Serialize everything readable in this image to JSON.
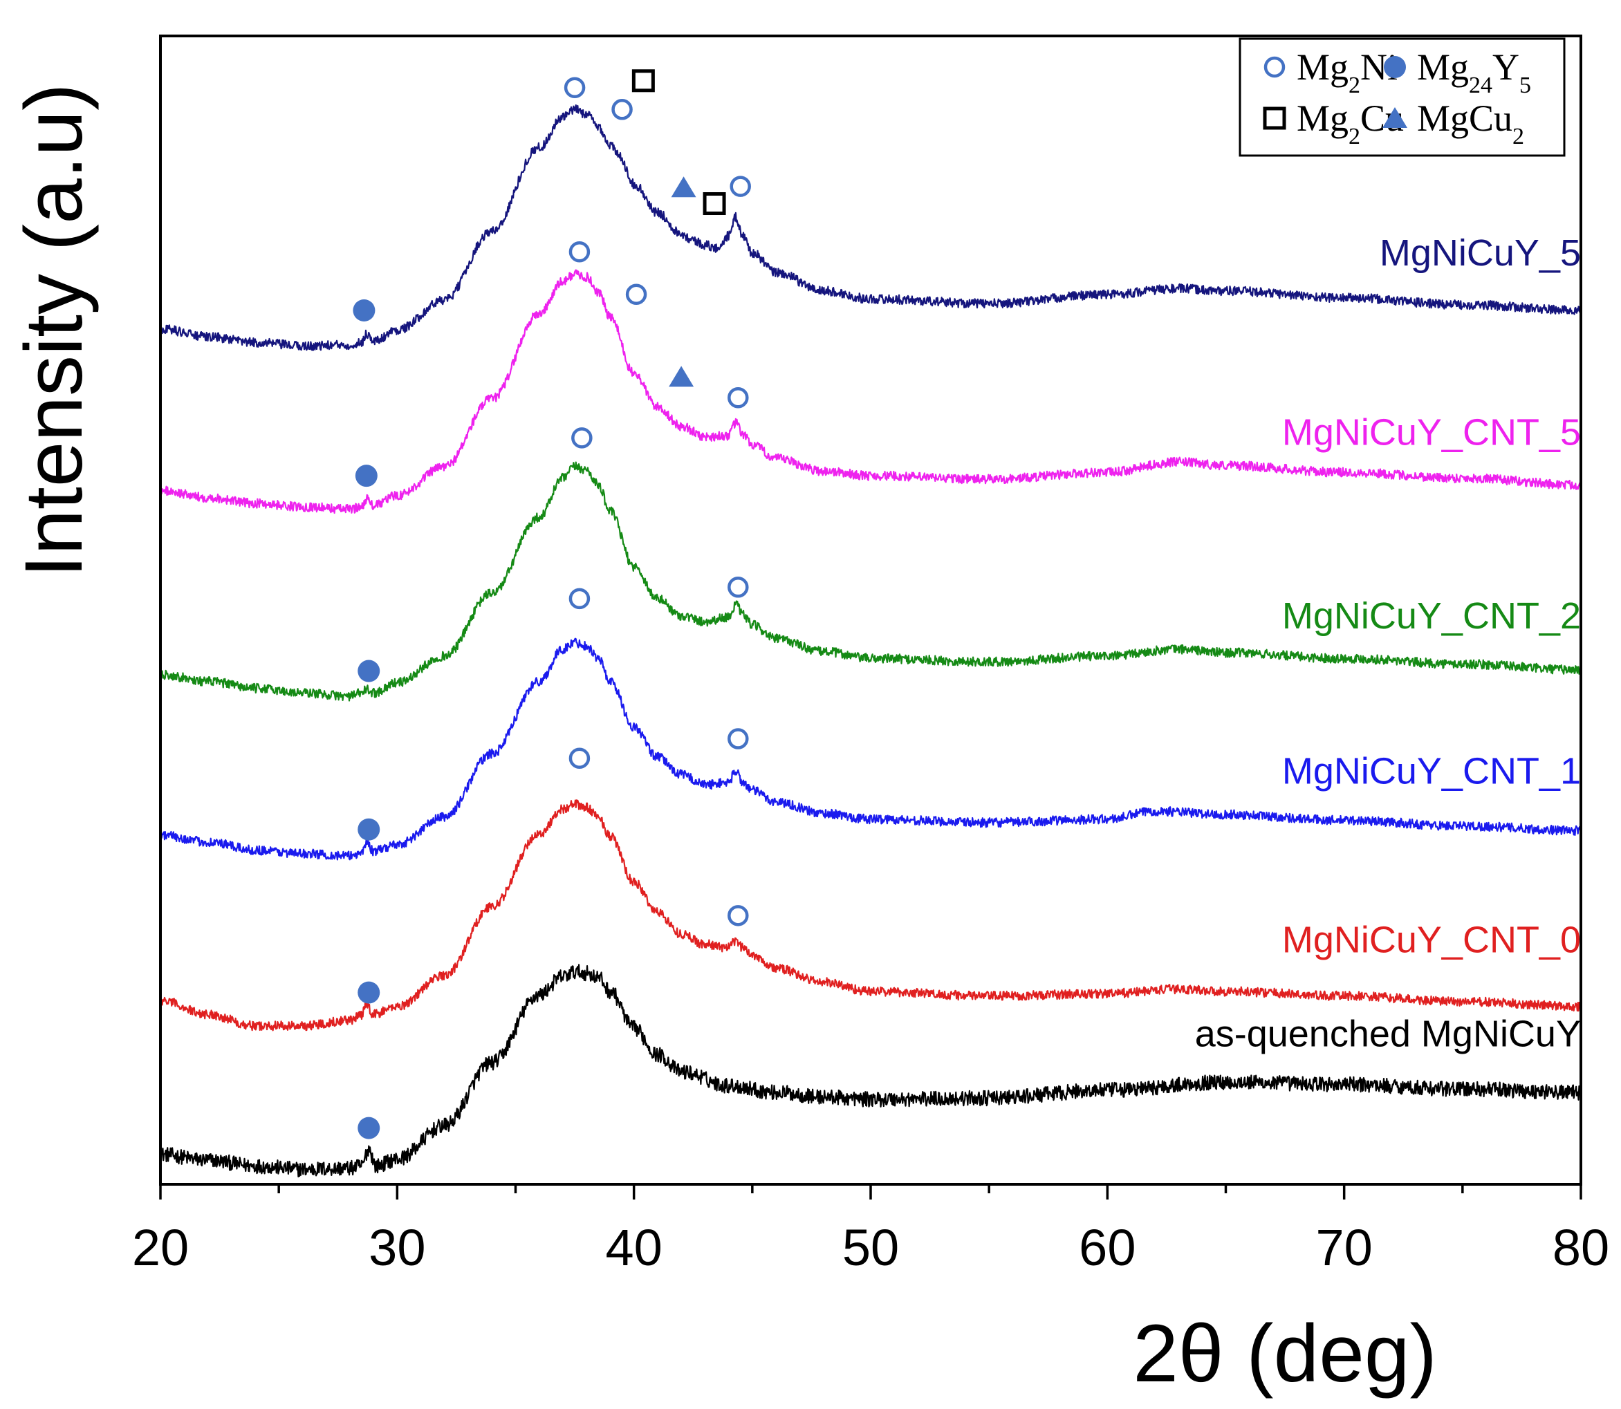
{
  "chart_data": {
    "type": "line",
    "title": "",
    "xlabel": "2θ (deg)",
    "ylabel": "Intensity (a.u)",
    "xlim": [
      20,
      80
    ],
    "ylim": [
      0,
      1000
    ],
    "x_ticks": [
      20,
      30,
      40,
      50,
      60,
      70,
      80
    ],
    "x_tick_labels": [
      "20",
      "30",
      "40",
      "50",
      "60",
      "70",
      "80"
    ],
    "grid": false,
    "legend": {
      "position": "top-right",
      "entries": [
        {
          "marker": "open-circle",
          "name": "Mg",
          "sub": "2",
          "rest": "Ni",
          "sub2": ""
        },
        {
          "marker": "filled-circle",
          "name": "Mg",
          "sub": "24",
          "rest": "Y",
          "sub2": "5"
        },
        {
          "marker": "open-square",
          "name": "Mg",
          "sub": "2",
          "rest": "Cu",
          "sub2": ""
        },
        {
          "marker": "filled-triangle",
          "name": "MgCu",
          "sub": "2",
          "rest": "",
          "sub2": ""
        }
      ]
    },
    "series": [
      {
        "name": "as-quenched MgNiCuY",
        "color": "#000000",
        "x": [
          20,
          22,
          24,
          26,
          28,
          28.5,
          28.8,
          29.1,
          30,
          32,
          34,
          36,
          37,
          37.5,
          38,
          38.5,
          39,
          40,
          41,
          42,
          44,
          46,
          48,
          50,
          55,
          60,
          65,
          70,
          75,
          80
        ],
        "y": [
          26,
          21,
          16,
          13,
          14,
          16,
          31,
          16,
          22,
          51,
          106,
          165,
          181,
          185,
          184,
          180,
          168,
          136,
          113,
          98,
          86,
          80,
          76,
          74,
          75,
          82,
          89,
          87,
          83,
          80
        ],
        "markers": [
          {
            "type": "filled-circle",
            "x": 28.8,
            "y": 49
          }
        ]
      },
      {
        "name": "MgNiCuY_CNT_0",
        "color": "#e02020",
        "x": [
          20,
          22,
          24,
          26,
          28,
          28.5,
          28.7,
          29,
          30,
          32,
          34,
          36,
          37,
          37.5,
          38,
          38.5,
          39,
          40,
          41,
          42,
          43,
          44,
          44.3,
          44.6,
          45,
          46,
          48,
          50,
          55,
          60,
          63,
          65,
          70,
          75,
          80
        ],
        "y": [
          160,
          148,
          138,
          138,
          143,
          147,
          157,
          148,
          155,
          182,
          242,
          305,
          327,
          331,
          328,
          320,
          303,
          263,
          237,
          218,
          209,
          206,
          212,
          206,
          200,
          188,
          176,
          168,
          164,
          166,
          170,
          168,
          164,
          159,
          155
        ],
        "markers": [
          {
            "type": "filled-circle",
            "x": 28.8,
            "y": 167
          },
          {
            "type": "open-circle",
            "x": 37.7,
            "y": 371
          },
          {
            "type": "open-circle",
            "x": 44.4,
            "y": 234
          }
        ]
      },
      {
        "name": "MgNiCuY_CNT_1",
        "color": "#1a1aee",
        "x": [
          20,
          22,
          24,
          26,
          28,
          28.5,
          28.7,
          29,
          30,
          32,
          34,
          36,
          37,
          37.5,
          38,
          38.5,
          39,
          40,
          41,
          42,
          43,
          44,
          44.3,
          44.6,
          45,
          46,
          48,
          50,
          55,
          60,
          62,
          65,
          70,
          75,
          80
        ],
        "y": [
          304,
          298,
          291,
          288,
          286,
          289,
          298,
          290,
          296,
          320,
          375,
          438,
          466,
          472,
          469,
          458,
          438,
          398,
          372,
          357,
          348,
          350,
          360,
          350,
          343,
          333,
          323,
          318,
          315,
          318,
          325,
          322,
          317,
          312,
          308
        ],
        "markers": [
          {
            "type": "filled-circle",
            "x": 28.8,
            "y": 309
          },
          {
            "type": "open-circle",
            "x": 37.7,
            "y": 510
          },
          {
            "type": "open-circle",
            "x": 44.4,
            "y": 388
          }
        ]
      },
      {
        "name": "MgNiCuY_CNT_2",
        "color": "#158a15",
        "x": [
          20,
          22,
          24,
          26,
          28,
          28.5,
          28.7,
          29,
          30,
          32,
          34,
          36,
          37,
          37.5,
          38,
          38.5,
          39,
          40,
          41,
          42,
          43,
          44,
          44.3,
          44.6,
          45,
          46,
          48,
          50,
          55,
          60,
          63,
          65,
          70,
          75,
          80
        ],
        "y": [
          444,
          438,
          432,
          428,
          425,
          428,
          431,
          428,
          437,
          460,
          515,
          581,
          615,
          625,
          622,
          609,
          586,
          538,
          510,
          495,
          490,
          494,
          505,
          496,
          487,
          475,
          464,
          458,
          455,
          460,
          466,
          463,
          458,
          453,
          448
        ],
        "markers": [
          {
            "type": "filled-circle",
            "x": 28.8,
            "y": 447
          },
          {
            "type": "open-circle",
            "x": 37.8,
            "y": 650
          },
          {
            "type": "open-circle",
            "x": 44.4,
            "y": 520
          }
        ]
      },
      {
        "name": "MgNiCuY_CNT_5",
        "color": "#ee22ee",
        "x": [
          20,
          22,
          24,
          26,
          28,
          28.5,
          28.7,
          29,
          30,
          32,
          34,
          36,
          37,
          37.5,
          38,
          38.5,
          39,
          40,
          41,
          42,
          43,
          44,
          44.3,
          44.6,
          45,
          46,
          48,
          50,
          55,
          60,
          63,
          65,
          70,
          75,
          80
        ],
        "y": [
          604,
          598,
          593,
          590,
          588,
          590,
          597,
          591,
          600,
          625,
          684,
          758,
          786,
          793,
          790,
          777,
          755,
          706,
          677,
          660,
          651,
          652,
          663,
          653,
          644,
          632,
          621,
          617,
          614,
          620,
          629,
          626,
          620,
          615,
          609
        ],
        "markers": [
          {
            "type": "filled-circle",
            "x": 28.7,
            "y": 617
          },
          {
            "type": "open-circle",
            "x": 37.7,
            "y": 812
          },
          {
            "type": "open-circle",
            "x": 40.1,
            "y": 775
          },
          {
            "type": "filled-triangle",
            "x": 42.0,
            "y": 703
          },
          {
            "type": "open-circle",
            "x": 44.4,
            "y": 685
          }
        ]
      },
      {
        "name": "MgNiCuY_5",
        "color": "#15157d",
        "x": [
          20,
          22,
          24,
          26,
          28,
          28.5,
          28.7,
          29,
          30,
          32,
          34,
          36,
          37,
          37.5,
          38,
          38.5,
          39,
          39.4,
          40,
          41,
          42,
          42.5,
          43,
          43.5,
          44,
          44.3,
          44.6,
          45,
          46,
          48,
          50,
          55,
          60,
          63,
          65,
          70,
          75,
          80
        ],
        "y": [
          745,
          738,
          733,
          730,
          731,
          733,
          741,
          734,
          744,
          770,
          830,
          903,
          929,
          936,
          932,
          921,
          905,
          895,
          871,
          846,
          828,
          822,
          818,
          815,
          826,
          842,
          826,
          811,
          794,
          778,
          771,
          767,
          775,
          780,
          778,
          772,
          766,
          761
        ],
        "markers": [
          {
            "type": "filled-circle",
            "x": 28.6,
            "y": 761
          },
          {
            "type": "open-circle",
            "x": 37.5,
            "y": 955
          },
          {
            "type": "open-circle",
            "x": 39.5,
            "y": 936
          },
          {
            "type": "open-square",
            "x": 40.4,
            "y": 961
          },
          {
            "type": "filled-triangle",
            "x": 42.1,
            "y": 868
          },
          {
            "type": "open-square",
            "x": 43.4,
            "y": 854
          },
          {
            "type": "open-circle",
            "x": 44.5,
            "y": 869
          }
        ]
      }
    ],
    "series_labels": [
      {
        "series": "MgNiCuY_5",
        "text": "MgNiCuY_5",
        "y": 800,
        "color": "#15157d"
      },
      {
        "series": "MgNiCuY_CNT_5",
        "text": "MgNiCuY_CNT_5",
        "y": 644,
        "color": "#ee22ee"
      },
      {
        "series": "MgNiCuY_CNT_2",
        "text": "MgNiCuY_CNT_2",
        "y": 484,
        "color": "#158a15"
      },
      {
        "series": "MgNiCuY_CNT_1",
        "text": "MgNiCuY_CNT_1",
        "y": 349,
        "color": "#1a1aee"
      },
      {
        "series": "MgNiCuY_CNT_0",
        "text": "MgNiCuY_CNT_0",
        "y": 202,
        "color": "#e02020"
      },
      {
        "series": "as-quenched MgNiCuY",
        "text": "as-quenched MgNiCuY",
        "y": 120,
        "color": "#000000"
      }
    ],
    "marker_color": "#4472c4"
  }
}
